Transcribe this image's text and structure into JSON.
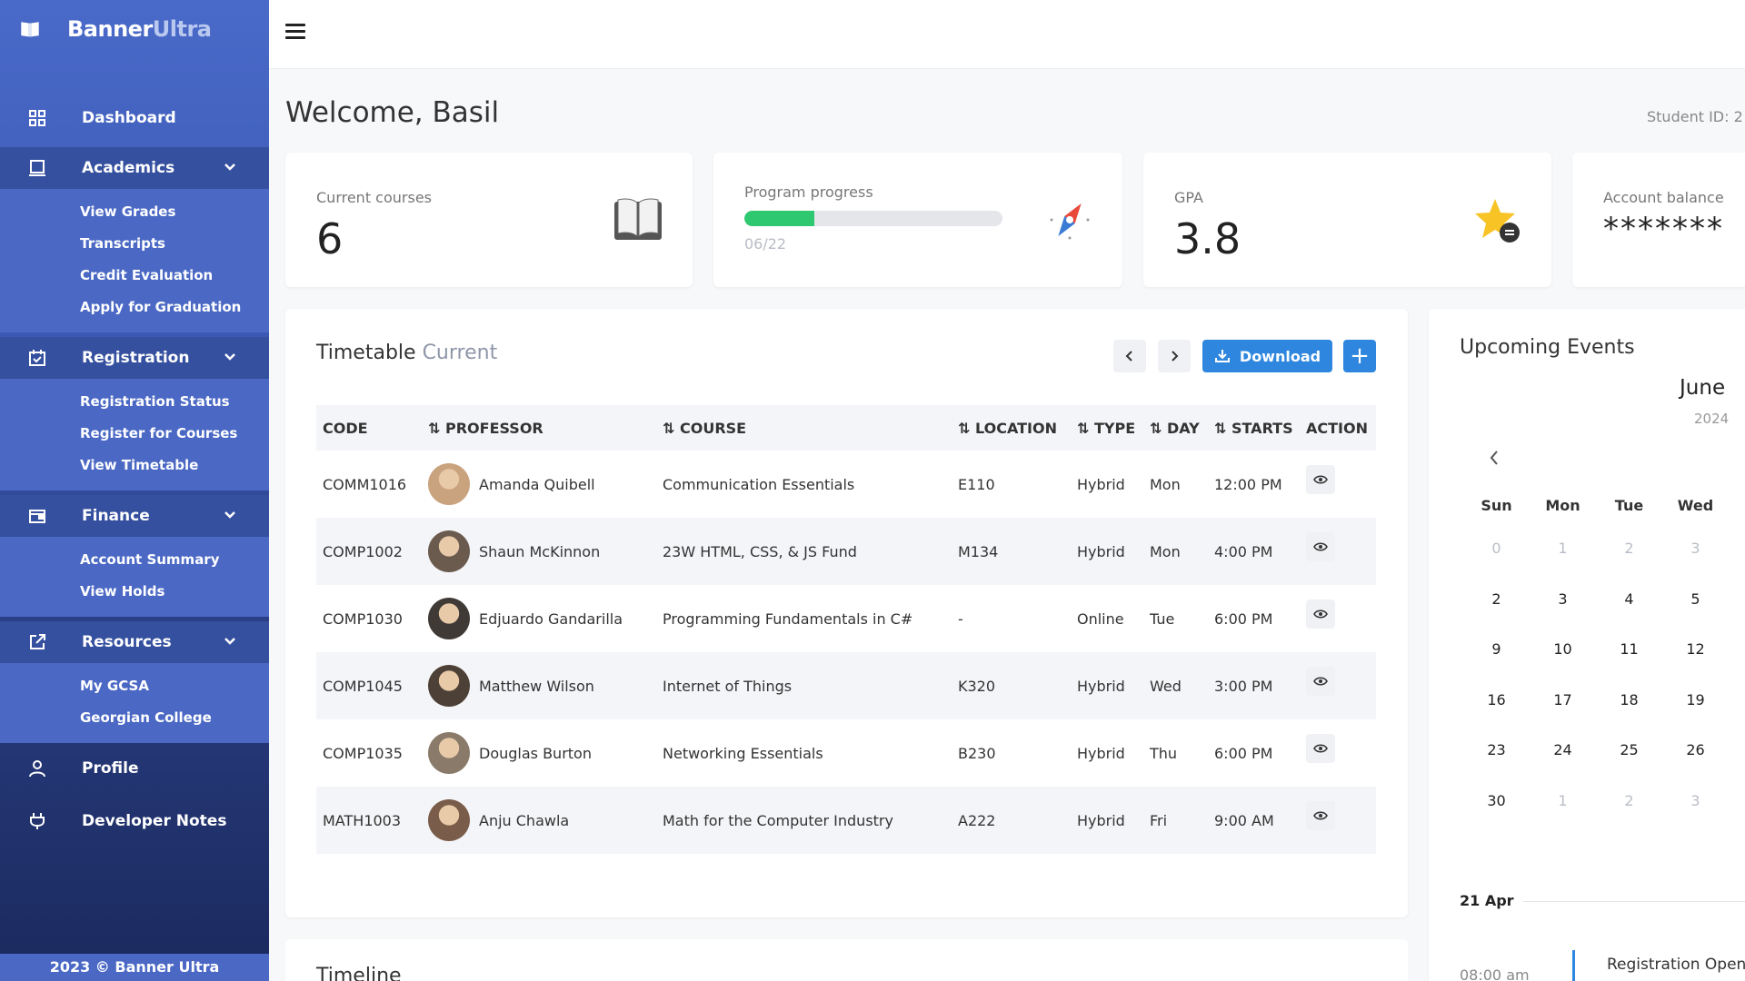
{
  "brand": {
    "name_main": "Banner",
    "name_accent": "Ultra"
  },
  "nav": {
    "dashboard": "Dashboard",
    "academics": {
      "label": "Academics",
      "items": [
        "View Grades",
        "Transcripts",
        "Credit Evaluation",
        "Apply for Graduation"
      ]
    },
    "registration": {
      "label": "Registration",
      "items": [
        "Registration Status",
        "Register for Courses",
        "View Timetable"
      ]
    },
    "finance": {
      "label": "Finance",
      "items": [
        "Account Summary",
        "View Holds"
      ]
    },
    "resources": {
      "label": "Resources",
      "items": [
        "My GCSA",
        "Georgian College"
      ]
    },
    "profile": "Profile",
    "developer_notes": "Developer Notes",
    "footer": "2023 © Banner Ultra"
  },
  "welcome": "Welcome, Basil",
  "student_id": "Student ID: 2",
  "stats": {
    "courses": {
      "label": "Current courses",
      "value": "6"
    },
    "progress": {
      "label": "Program progress",
      "text": "06/22",
      "fraction": 0.27
    },
    "gpa": {
      "label": "GPA",
      "value": "3.8"
    },
    "balance": {
      "label": "Account balance",
      "value": "*******"
    }
  },
  "timetable": {
    "title": "Timetable",
    "subtitle": "Current",
    "download_label": "Download",
    "add_label": "+",
    "columns": [
      "CODE",
      "PROFESSOR",
      "COURSE",
      "LOCATION",
      "TYPE",
      "DAY",
      "STARTS",
      "ACTION"
    ],
    "rows": [
      {
        "code": "COMM1016",
        "professor": "Amanda Quibell",
        "course": "Communication Essentials",
        "location": "E110",
        "type": "Hybrid",
        "day": "Mon",
        "starts": "12:00 PM"
      },
      {
        "code": "COMP1002",
        "professor": "Shaun McKinnon",
        "course": "23W HTML, CSS, & JS Fund",
        "location": "M134",
        "type": "Hybrid",
        "day": "Mon",
        "starts": "4:00 PM"
      },
      {
        "code": "COMP1030",
        "professor": "Edjuardo Gandarilla",
        "course": "Programming Fundamentals in C#",
        "location": "-",
        "type": "Online",
        "day": "Tue",
        "starts": "6:00 PM"
      },
      {
        "code": "COMP1045",
        "professor": "Matthew Wilson",
        "course": "Internet of Things",
        "location": "K320",
        "type": "Hybrid",
        "day": "Wed",
        "starts": "3:00 PM"
      },
      {
        "code": "COMP1035",
        "professor": "Douglas Burton",
        "course": "Networking Essentials",
        "location": "B230",
        "type": "Hybrid",
        "day": "Thu",
        "starts": "6:00 PM"
      },
      {
        "code": "MATH1003",
        "professor": "Anju Chawla",
        "course": "Math for the Computer Industry",
        "location": "A222",
        "type": "Hybrid",
        "day": "Fri",
        "starts": "9:00 AM"
      }
    ]
  },
  "timeline": {
    "title": "Timeline"
  },
  "events": {
    "title": "Upcoming Events",
    "month": "June",
    "year": "2024",
    "weekdays": [
      "Sun",
      "Mon",
      "Tue",
      "Wed"
    ],
    "weeks": [
      [
        "0",
        "1",
        "2",
        "3"
      ],
      [
        "2",
        "3",
        "4",
        "5"
      ],
      [
        "9",
        "10",
        "11",
        "12"
      ],
      [
        "16",
        "17",
        "18",
        "19"
      ],
      [
        "23",
        "24",
        "25",
        "26"
      ],
      [
        "30",
        "1",
        "2",
        "3"
      ]
    ],
    "muted_weeks": [
      0,
      5
    ],
    "first_muted_exception": "30",
    "date": "21 Apr",
    "time": "08:00 am",
    "event_name": "Registration Open"
  },
  "colors": {
    "accent": "#2e86de",
    "progress": "#2ec870",
    "sidebar": "#3b58b2"
  }
}
